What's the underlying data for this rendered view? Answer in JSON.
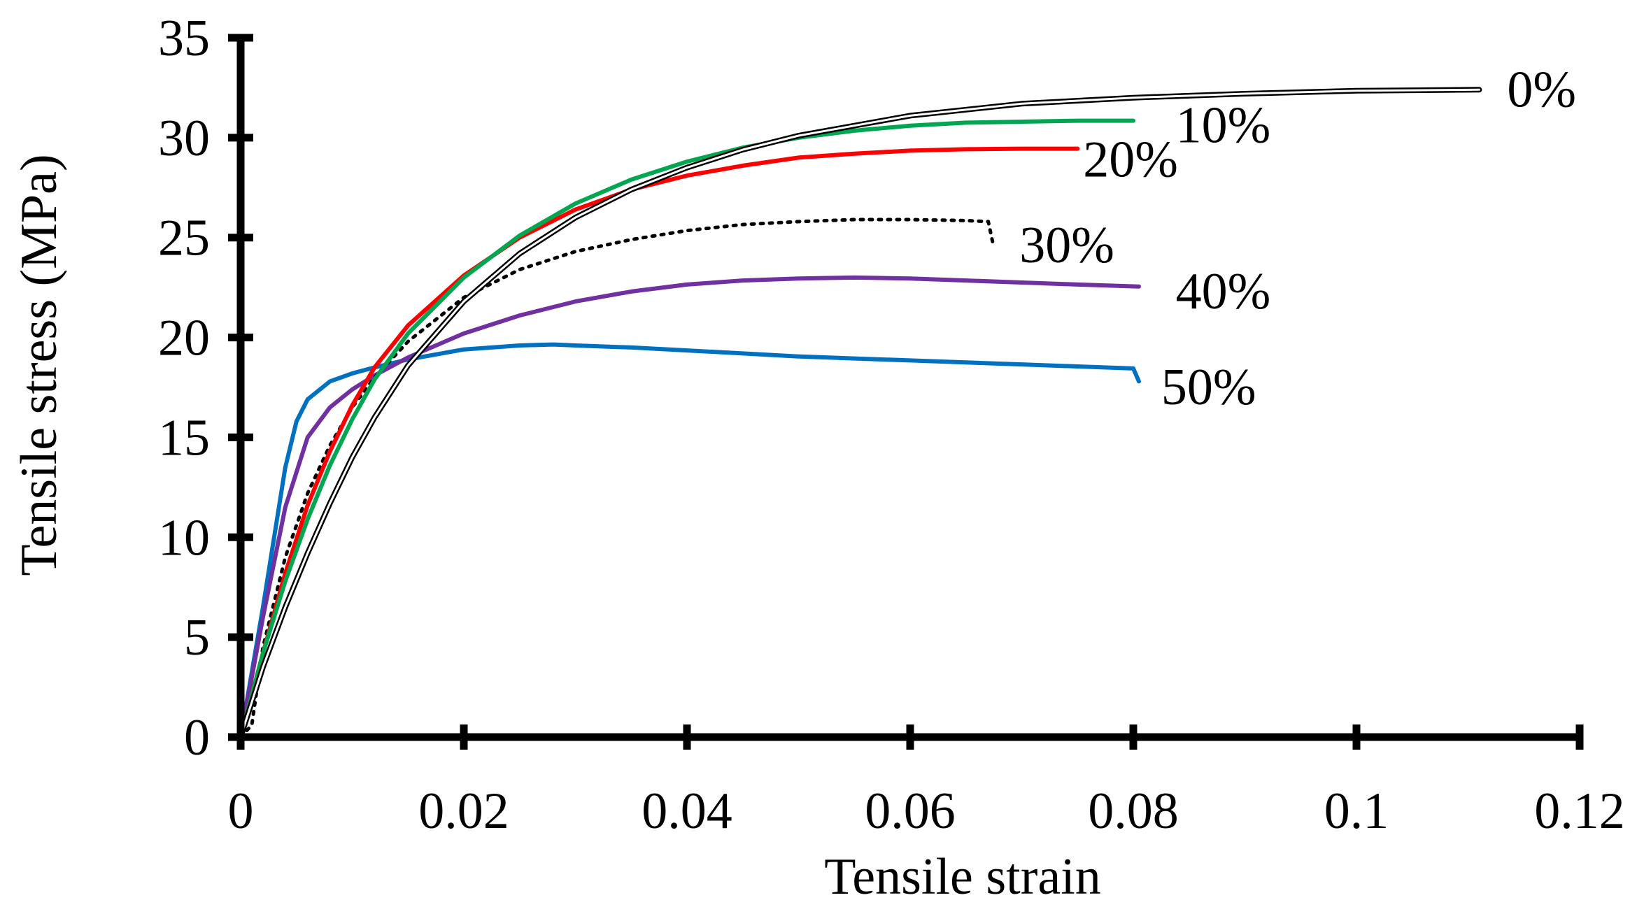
{
  "chart_data": {
    "type": "line",
    "title": "",
    "xlabel": "Tensile strain",
    "ylabel": "Tensile stress (MPa)",
    "xlim": [
      0,
      0.12
    ],
    "ylim": [
      0,
      35
    ],
    "xticks": [
      0,
      0.02,
      0.04,
      0.06,
      0.08,
      0.1,
      0.12
    ],
    "xtick_labels": [
      "0",
      "0.02",
      "0.04",
      "0.06",
      "0.08",
      "0.1",
      "0.12"
    ],
    "yticks": [
      0,
      5,
      10,
      15,
      20,
      25,
      30,
      35
    ],
    "ytick_labels": [
      "0",
      "5",
      "10",
      "15",
      "20",
      "25",
      "30",
      "35"
    ],
    "grid": false,
    "legend": "inline labels at curve ends",
    "series": [
      {
        "name": "0%",
        "color": "#000000",
        "style": "double",
        "x": [
          0,
          0.002,
          0.004,
          0.006,
          0.008,
          0.01,
          0.012,
          0.015,
          0.02,
          0.025,
          0.03,
          0.035,
          0.04,
          0.045,
          0.05,
          0.06,
          0.07,
          0.08,
          0.09,
          0.1,
          0.111
        ],
        "y": [
          0,
          3.5,
          6.5,
          9.2,
          11.7,
          14.0,
          16.0,
          18.6,
          21.8,
          24.2,
          26.0,
          27.4,
          28.5,
          29.4,
          30.1,
          31.1,
          31.7,
          32.0,
          32.2,
          32.35,
          32.4
        ]
      },
      {
        "name": "10%",
        "color": "#00A650",
        "style": "solid",
        "x": [
          0,
          0.002,
          0.004,
          0.006,
          0.008,
          0.01,
          0.012,
          0.015,
          0.02,
          0.025,
          0.03,
          0.035,
          0.04,
          0.045,
          0.05,
          0.055,
          0.06,
          0.065,
          0.07,
          0.075,
          0.08
        ],
        "y": [
          0,
          4.2,
          7.8,
          10.9,
          13.6,
          15.9,
          17.9,
          20.2,
          23.0,
          25.1,
          26.7,
          27.9,
          28.8,
          29.5,
          30.0,
          30.35,
          30.6,
          30.75,
          30.8,
          30.85,
          30.85
        ]
      },
      {
        "name": "20%",
        "color": "#FF0000",
        "style": "solid",
        "x": [
          0,
          0.002,
          0.004,
          0.006,
          0.008,
          0.01,
          0.012,
          0.015,
          0.02,
          0.025,
          0.03,
          0.035,
          0.04,
          0.045,
          0.05,
          0.055,
          0.06,
          0.065,
          0.07,
          0.075
        ],
        "y": [
          0,
          4.2,
          8.2,
          11.6,
          14.3,
          16.6,
          18.5,
          20.6,
          23.1,
          25.0,
          26.4,
          27.4,
          28.1,
          28.6,
          29.0,
          29.2,
          29.35,
          29.42,
          29.45,
          29.45
        ]
      },
      {
        "name": "30%",
        "color": "#000000",
        "style": "dotted",
        "x": [
          0,
          0.001,
          0.002,
          0.004,
          0.006,
          0.008,
          0.01,
          0.012,
          0.015,
          0.02,
          0.025,
          0.03,
          0.035,
          0.04,
          0.045,
          0.05,
          0.055,
          0.06,
          0.065,
          0.067,
          0.0675
        ],
        "y": [
          0,
          0.6,
          4.5,
          9.0,
          12.2,
          14.6,
          16.5,
          18.0,
          19.8,
          22.0,
          23.4,
          24.3,
          24.9,
          25.35,
          25.65,
          25.8,
          25.9,
          25.9,
          25.85,
          25.8,
          24.5
        ]
      },
      {
        "name": "40%",
        "color": "#7030A0",
        "style": "solid",
        "x": [
          0,
          0.002,
          0.004,
          0.006,
          0.008,
          0.01,
          0.012,
          0.015,
          0.02,
          0.025,
          0.03,
          0.035,
          0.04,
          0.045,
          0.05,
          0.055,
          0.06,
          0.065,
          0.07,
          0.075,
          0.0805
        ],
        "y": [
          0,
          6.0,
          11.5,
          15.0,
          16.5,
          17.4,
          18.1,
          19.0,
          20.2,
          21.1,
          21.8,
          22.3,
          22.65,
          22.85,
          22.95,
          23.0,
          22.95,
          22.85,
          22.75,
          22.65,
          22.55
        ]
      },
      {
        "name": "50%",
        "color": "#0070C0",
        "style": "solid",
        "x": [
          0,
          0.002,
          0.004,
          0.005,
          0.006,
          0.008,
          0.01,
          0.012,
          0.015,
          0.02,
          0.025,
          0.028,
          0.03,
          0.035,
          0.04,
          0.045,
          0.05,
          0.055,
          0.06,
          0.065,
          0.07,
          0.075,
          0.08,
          0.0805
        ],
        "y": [
          0,
          6.5,
          13.5,
          15.8,
          16.9,
          17.8,
          18.2,
          18.5,
          18.9,
          19.4,
          19.6,
          19.65,
          19.6,
          19.5,
          19.35,
          19.2,
          19.05,
          18.95,
          18.85,
          18.75,
          18.65,
          18.55,
          18.45,
          17.8
        ]
      }
    ],
    "annotations": [
      {
        "text": "0%",
        "x": 0.1135,
        "y": 32.4
      },
      {
        "text": "10%",
        "x": 0.0838,
        "y": 30.6
      },
      {
        "text": "20%",
        "x": 0.0755,
        "y": 28.9
      },
      {
        "text": "30%",
        "x": 0.0698,
        "y": 24.6
      },
      {
        "text": "40%",
        "x": 0.0838,
        "y": 22.3
      },
      {
        "text": "50%",
        "x": 0.0825,
        "y": 17.5
      }
    ]
  }
}
